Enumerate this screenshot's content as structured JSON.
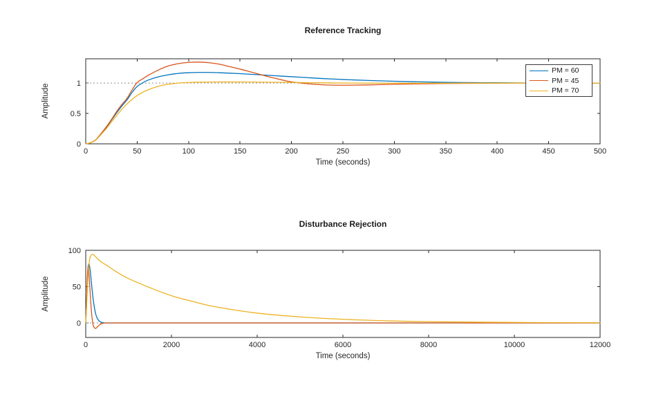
{
  "figure": {
    "background": "#ffffff",
    "axis_color": "#262626",
    "tick_label_color": "#262626",
    "reference_line_color": "#8c8c8c"
  },
  "chart_data": [
    {
      "type": "line",
      "title": "Reference Tracking",
      "xlabel": "Time (seconds)",
      "ylabel": "Amplitude",
      "xlim": [
        0,
        500
      ],
      "ylim": [
        0,
        1.4
      ],
      "xticks": [
        0,
        50,
        100,
        150,
        200,
        250,
        300,
        350,
        400,
        450,
        500
      ],
      "yticks": [
        0,
        0.5,
        1
      ],
      "grid": false,
      "reference_line_y": 1,
      "legend_position": "upper right",
      "legend_entries": [
        "PM = 60",
        "PM = 45",
        "PM = 70"
      ],
      "x_shared": [
        0,
        5,
        10,
        15,
        20,
        25,
        30,
        35,
        40,
        45,
        50,
        55,
        60,
        70,
        80,
        90,
        100,
        110,
        120,
        130,
        140,
        150,
        160,
        170,
        180,
        190,
        200,
        215,
        230,
        245,
        260,
        280,
        300,
        320,
        340,
        360,
        380,
        400,
        430,
        460,
        500
      ],
      "series": [
        {
          "name": "PM = 60",
          "color": "#0072BD",
          "y": [
            0,
            0.02,
            0.07,
            0.17,
            0.27,
            0.39,
            0.51,
            0.62,
            0.72,
            0.845,
            0.945,
            1.0,
            1.045,
            1.1,
            1.135,
            1.16,
            1.17,
            1.175,
            1.175,
            1.17,
            1.163,
            1.155,
            1.145,
            1.135,
            1.125,
            1.115,
            1.105,
            1.09,
            1.075,
            1.063,
            1.052,
            1.04,
            1.03,
            1.022,
            1.015,
            1.01,
            1.007,
            1.005,
            1.002,
            1.001,
            1.0
          ]
        },
        {
          "name": "PM = 45",
          "color": "#D95319",
          "y": [
            0,
            0.02,
            0.07,
            0.17,
            0.28,
            0.4,
            0.53,
            0.645,
            0.745,
            0.885,
            1.01,
            1.065,
            1.12,
            1.21,
            1.28,
            1.32,
            1.34,
            1.345,
            1.335,
            1.31,
            1.27,
            1.23,
            1.185,
            1.14,
            1.095,
            1.055,
            1.02,
            0.99,
            0.972,
            0.965,
            0.966,
            0.972,
            0.98,
            0.986,
            0.991,
            0.995,
            0.997,
            0.999,
            1.0,
            1.0,
            1.0
          ]
        },
        {
          "name": "PM = 70",
          "color": "#EDB120",
          "y": [
            0,
            0.02,
            0.065,
            0.155,
            0.25,
            0.36,
            0.465,
            0.565,
            0.655,
            0.73,
            0.795,
            0.845,
            0.885,
            0.945,
            0.98,
            1.0,
            1.01,
            1.015,
            1.017,
            1.018,
            1.018,
            1.018,
            1.017,
            1.016,
            1.014,
            1.012,
            1.01,
            1.007,
            1.004,
            1.002,
            1.0,
            0.998,
            0.997,
            0.997,
            0.998,
            0.999,
            1.0,
            1.0,
            1.0,
            1.0,
            1.0
          ]
        }
      ]
    },
    {
      "type": "line",
      "title": "Disturbance Rejection",
      "xlabel": "Time (seconds)",
      "ylabel": "Amplitude",
      "xlim": [
        0,
        12000
      ],
      "ylim": [
        -20,
        100
      ],
      "xticks": [
        0,
        2000,
        4000,
        6000,
        8000,
        10000,
        12000
      ],
      "yticks": [
        0,
        50,
        100
      ],
      "grid": false,
      "reference_line_y": 0,
      "legend_position": "none",
      "series": [
        {
          "name": "PM = 60",
          "color": "#0072BD",
          "x": [
            0,
            15,
            30,
            45,
            60,
            75,
            90,
            110,
            130,
            150,
            175,
            200,
            230,
            260,
            300,
            350,
            400,
            450,
            500,
            600,
            800,
            1200,
            2000,
            4000,
            8000,
            12000
          ],
          "y": [
            0,
            18,
            45,
            68,
            79,
            81,
            78,
            69,
            57,
            45,
            32,
            22,
            13,
            7.5,
            3.5,
            1.2,
            0.3,
            0,
            0,
            0,
            0,
            0,
            0,
            0,
            0,
            0
          ]
        },
        {
          "name": "PM = 45",
          "color": "#D95319",
          "x": [
            0,
            10,
            20,
            35,
            45,
            55,
            65,
            80,
            95,
            110,
            130,
            150,
            170,
            190,
            210,
            225,
            240,
            260,
            280,
            300,
            330,
            360,
            400,
            450,
            500,
            600,
            1000,
            2000,
            4000,
            8000,
            12000
          ],
          "y": [
            0,
            12,
            30,
            58,
            71,
            78,
            76,
            65,
            50,
            35,
            18,
            6,
            -2,
            -5.5,
            -7,
            -7.5,
            -7.2,
            -6.2,
            -5,
            -3.8,
            -2.3,
            -1.3,
            -0.5,
            -0.1,
            0,
            0,
            0,
            0,
            0,
            0,
            0
          ]
        },
        {
          "name": "PM = 70",
          "color": "#EDB120",
          "x": [
            0,
            25,
            50,
            75,
            100,
            150,
            200,
            300,
            400,
            500,
            700,
            1000,
            1500,
            2000,
            2500,
            3000,
            4000,
            5000,
            6000,
            7000,
            8000,
            10000,
            12000
          ],
          "y": [
            0,
            30,
            60,
            80,
            90,
            94.5,
            93,
            87,
            82.5,
            79,
            71,
            61,
            48.5,
            37.5,
            29.5,
            22.5,
            13.5,
            8.3,
            5.0,
            3.0,
            1.8,
            0.7,
            0.25
          ]
        }
      ]
    }
  ]
}
